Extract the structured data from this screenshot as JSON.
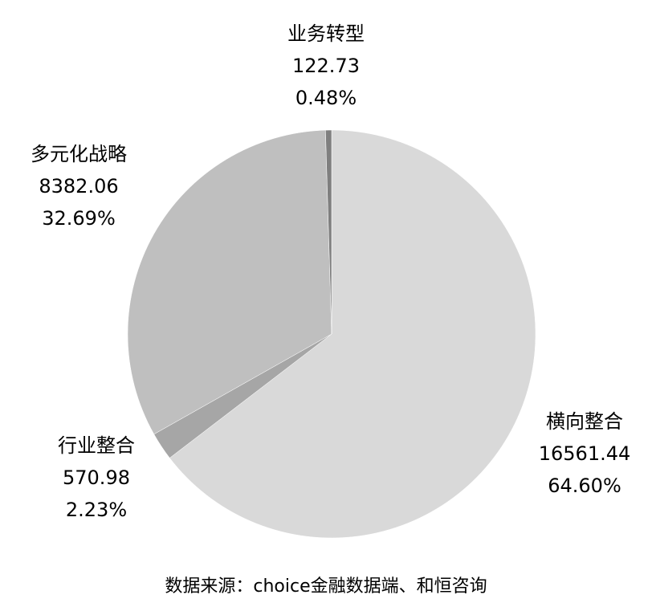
{
  "chart_data": {
    "type": "pie",
    "start_angle": "12 o'clock",
    "direction": "clockwise",
    "slices": [
      {
        "label": "横向整合",
        "value": 16561.44,
        "percent": "64.60%",
        "color": "#d9d9d9"
      },
      {
        "label": "行业整合",
        "value": 570.98,
        "percent": "2.23%",
        "color": "#a6a6a6"
      },
      {
        "label": "多元化战略",
        "value": 8382.06,
        "percent": "32.69%",
        "color": "#bfbfbf"
      },
      {
        "label": "业务转型",
        "value": 122.73,
        "percent": "0.48%",
        "color": "#7f7f7f"
      }
    ],
    "value_labels": [
      "16561.44",
      "570.98",
      "8382.06",
      "122.73"
    ],
    "source": "数据来源：choice金融数据端、和恒咨询"
  }
}
